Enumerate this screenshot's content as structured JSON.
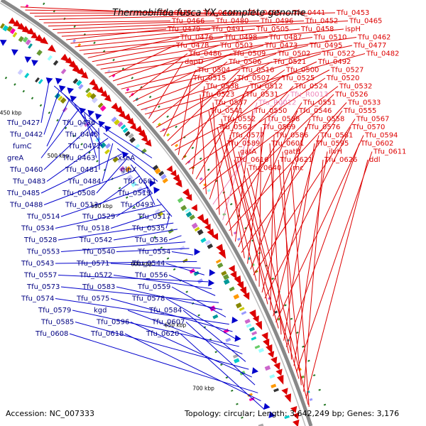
{
  "title": "Thermobifida fusca YX, complete genome",
  "accession": "Accession: NC_007333",
  "topology": "Topology: circular; Length: 3,642,249 bp; Genes: 3,176",
  "colors": {
    "forward": "#dd0000",
    "reverse": "#0000cc",
    "rna": "#ee88bb",
    "backbone": "#888888",
    "tick": "#227722"
  },
  "scale_labels": [
    "450 kbp",
    "500 kbp",
    "550 kbp",
    "600 kbp",
    "650 kbp",
    "700 kbp"
  ],
  "left_genes": [
    "Tfu_0427",
    "Tfu_0436",
    "Tfu_0442",
    "Tfu_0445",
    "fumC",
    "Tfu_0472",
    "greA",
    "Tfu_0463",
    "xseA",
    "Tfu_0460",
    "Tfu_0481",
    "glpX",
    "Tfu_0483",
    "Tfu_0484",
    "Tfu_0501",
    "Tfu_0485",
    "Tfu_0508",
    "Tfu_0519",
    "Tfu_0488",
    "Tfu_0513",
    "Tfu_0493",
    "Tfu_0514",
    "Tfu_0529",
    "Tfu_0517",
    "Tfu_0534",
    "Tfu_0518",
    "Tfu_0535",
    "Tfu_0528",
    "Tfu_0542",
    "Tfu_0536",
    "Tfu_0553",
    "Tfu_0540",
    "Tfu_0554",
    "Tfu_0543",
    "Tfu_0571",
    "Tfu_0544",
    "Tfu_0557",
    "Tfu_0572",
    "Tfu_0556",
    "Tfu_0573",
    "Tfu_0583",
    "Tfu_0559",
    "Tfu_0574",
    "Tfu_0575",
    "Tfu_0578",
    "Tfu_0579",
    "kgd",
    "Tfu_0584",
    "Tfu_0585",
    "Tfu_0596",
    "Tfu_0607",
    "Tfu_0608",
    "Tfu_0618",
    "Tfu_0620"
  ],
  "right_genes": [
    "Tfu_0475",
    "Tfu_0444",
    "Tfu_0435",
    "Tfu_0441",
    "Tfu_0453",
    "Tfu_0466",
    "Tfu_0480",
    "Tfu_0496",
    "Tfu_0452",
    "Tfu_0465",
    "Tfu_0479",
    "Tfu_0491",
    "Tfu_0505",
    "Tfu_0458",
    "ispH",
    "Tfu_0476",
    "Tfu_0498",
    "Tfu_0487",
    "Tfu_0510",
    "Tfu_0462",
    "Tfu_0478",
    "Tfu_0503",
    "Tfu_0473",
    "Tfu_0495",
    "Tfu_0477",
    "Tfu_0486",
    "Tfu_0509",
    "Tfu_0502",
    "Tfu_0522",
    "Tfu_0482",
    "dapD",
    "Tfu_0506",
    "Tfu_0521",
    "Tfu_0492",
    "Tfu_0504",
    "Tfu_0516",
    "Tfu_0500",
    "Tfu_0527",
    "Tfu_0515",
    "Tfu_0507",
    "Tfu_0525",
    "Tfu_0520",
    "Tfu_0538",
    "Tfu_0512",
    "Tfu_0524",
    "Tfu_0532",
    "Tfu_0523",
    "Tfu_0531",
    "Tfu_R0013",
    "Tfu_0526",
    "Tfu_0537",
    "Tfu_R0012",
    "Tfu_0551",
    "Tfu_0533",
    "Tfu_0541",
    "Tfu_0550",
    "Tfu_0546",
    "Tfu_0555",
    "Tfu_0552",
    "Tfu_0568",
    "Tfu_0558",
    "Tfu_0567",
    "Tfu_0562",
    "Tfu_0569",
    "Tfu_0576",
    "Tfu_0570",
    "Tfu_0577",
    "Tfu_0586",
    "Tfu_0581",
    "Tfu_0594",
    "Tfu_0589",
    "Tfu_0601",
    "Tfu_0595",
    "Tfu_0602",
    "gatA",
    "gatB",
    "ilvH",
    "Tfu_0611",
    "Tfu_0616",
    "Tfu_0621",
    "Tfu_0626",
    "ddl",
    "Tfu_0640",
    "rnc"
  ]
}
